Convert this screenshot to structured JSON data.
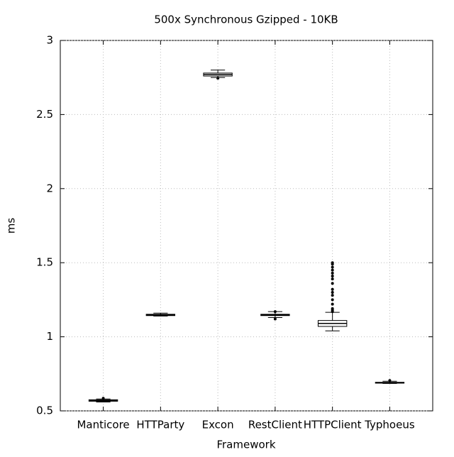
{
  "chart_data": {
    "type": "box",
    "title": "500x Synchronous Gzipped - 10KB",
    "x_label": "Framework",
    "y_label": "ms",
    "categories": [
      "Manticore",
      "HTTParty",
      "Excon",
      "RestClient",
      "HTTPClient",
      "Typhoeus"
    ],
    "boxes": [
      {
        "min": 0.56,
        "q1": 0.565,
        "median": 0.57,
        "q3": 0.575,
        "max": 0.58,
        "outliers": [
          0.585
        ]
      },
      {
        "min": 1.14,
        "q1": 1.143,
        "median": 1.148,
        "q3": 1.152,
        "max": 1.16,
        "outliers": []
      },
      {
        "min": 2.75,
        "q1": 2.76,
        "median": 2.77,
        "q3": 2.78,
        "max": 2.8,
        "outliers": [
          2.745
        ]
      },
      {
        "min": 1.13,
        "q1": 1.143,
        "median": 1.148,
        "q3": 1.152,
        "max": 1.17,
        "outliers": [
          1.12,
          1.17
        ]
      },
      {
        "min": 1.04,
        "q1": 1.07,
        "median": 1.09,
        "q3": 1.11,
        "max": 1.165,
        "outliers": [
          1.17,
          1.18,
          1.19,
          1.22,
          1.25,
          1.28,
          1.3,
          1.32,
          1.36,
          1.39,
          1.41,
          1.43,
          1.45,
          1.47,
          1.49,
          1.5
        ]
      },
      {
        "min": 0.685,
        "q1": 0.687,
        "median": 0.69,
        "q3": 0.693,
        "max": 0.7,
        "outliers": [
          0.705
        ]
      }
    ],
    "color": "#000000",
    "ylim": [
      0.5,
      3
    ],
    "yticks": [
      0.5,
      1,
      1.5,
      2,
      2.5,
      3
    ],
    "grid": true
  }
}
